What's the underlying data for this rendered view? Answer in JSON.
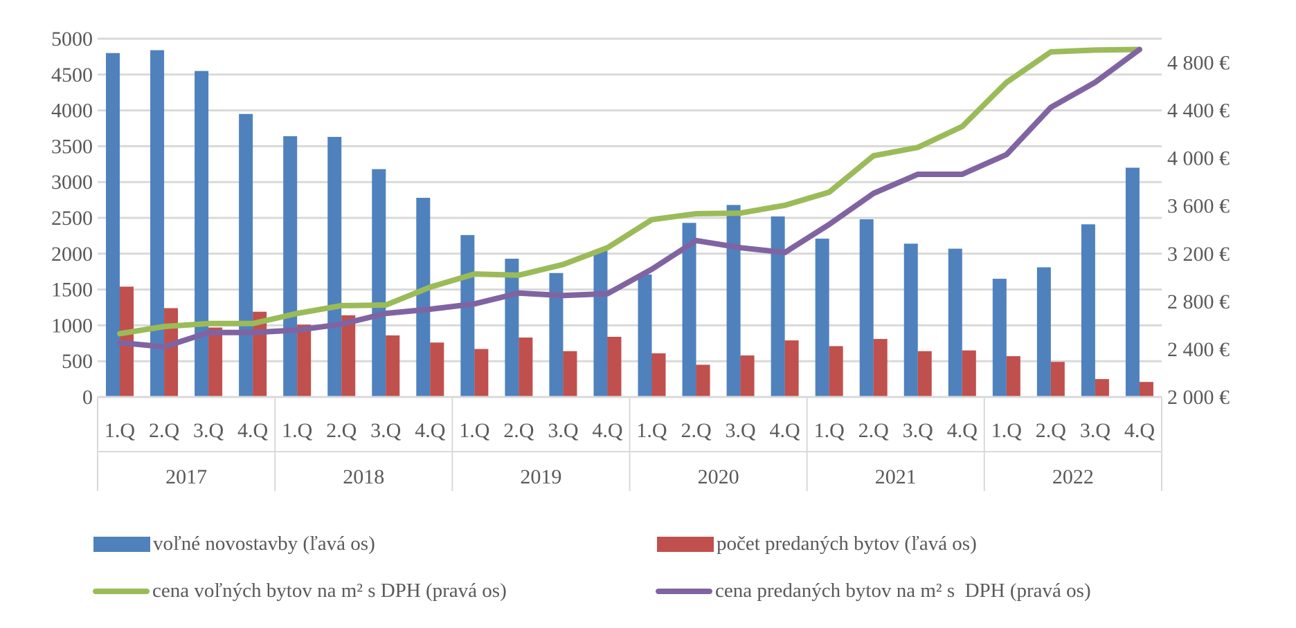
{
  "chart_data": {
    "type": "bar+line",
    "title": "",
    "categories": [
      "1.Q",
      "2.Q",
      "3.Q",
      "4.Q",
      "1.Q",
      "2.Q",
      "3.Q",
      "4.Q",
      "1.Q",
      "2.Q",
      "3.Q",
      "4.Q",
      "1.Q",
      "2.Q",
      "3.Q",
      "4.Q",
      "1.Q",
      "2.Q",
      "3.Q",
      "4.Q",
      "1.Q",
      "2.Q",
      "3.Q",
      "4.Q"
    ],
    "years": [
      "2017",
      "2018",
      "2019",
      "2020",
      "2021",
      "2022"
    ],
    "left_axis": {
      "ylim": [
        0,
        5000
      ],
      "ticks": [
        "0",
        "500",
        "1000",
        "1500",
        "2000",
        "2500",
        "3000",
        "3500",
        "4000",
        "4500",
        "5000"
      ],
      "tick_values": [
        0,
        500,
        1000,
        1500,
        2000,
        2500,
        3000,
        3500,
        4000,
        4500,
        5000
      ]
    },
    "right_axis": {
      "ylim": [
        2000,
        5000
      ],
      "ticks": [
        "2 000 €",
        "2 400 €",
        "2 800 €",
        "3 200 €",
        "3 600 €",
        "4 000 €",
        "4 400 €",
        "4 800 €"
      ],
      "tick_values": [
        2000,
        2400,
        2800,
        3200,
        3600,
        4000,
        4400,
        4800
      ]
    },
    "grid": true,
    "legend_placement": "bottom",
    "series": [
      {
        "name": "voľné novostavby (ľavá os)",
        "kind": "bar",
        "axis": "left",
        "color": "#4f81bd",
        "values": [
          4800,
          4840,
          4550,
          3950,
          3640,
          3630,
          3180,
          2780,
          2260,
          1930,
          1730,
          2040,
          1710,
          2430,
          2680,
          2520,
          2210,
          2480,
          2140,
          2070,
          1650,
          1810,
          2410,
          3200
        ]
      },
      {
        "name": "počet predaných bytov (ľavá os)",
        "kind": "bar",
        "axis": "left",
        "color": "#c0504d",
        "values": [
          1540,
          1240,
          970,
          1190,
          1010,
          1140,
          860,
          760,
          670,
          830,
          640,
          840,
          610,
          450,
          580,
          790,
          710,
          810,
          640,
          650,
          570,
          490,
          250,
          210
        ]
      },
      {
        "name": "cena voľných bytov na m² s DPH (pravá os)",
        "kind": "line",
        "axis": "right",
        "color": "#9bbb59",
        "values": [
          2530,
          2590,
          2615,
          2615,
          2700,
          2765,
          2770,
          2920,
          3030,
          3020,
          3110,
          3250,
          3485,
          3535,
          3540,
          3605,
          3715,
          4020,
          4090,
          4265,
          4635,
          4890,
          4905,
          4910
        ]
      },
      {
        "name": "cena predaných bytov na m² s  DPH (pravá os)",
        "kind": "line",
        "axis": "right",
        "color": "#8064a2",
        "values": [
          2455,
          2420,
          2540,
          2540,
          2560,
          2610,
          2700,
          2735,
          2780,
          2870,
          2850,
          2865,
          3070,
          3310,
          3250,
          3210,
          3445,
          3705,
          3865,
          3865,
          4030,
          4425,
          4635,
          4910
        ]
      }
    ]
  }
}
